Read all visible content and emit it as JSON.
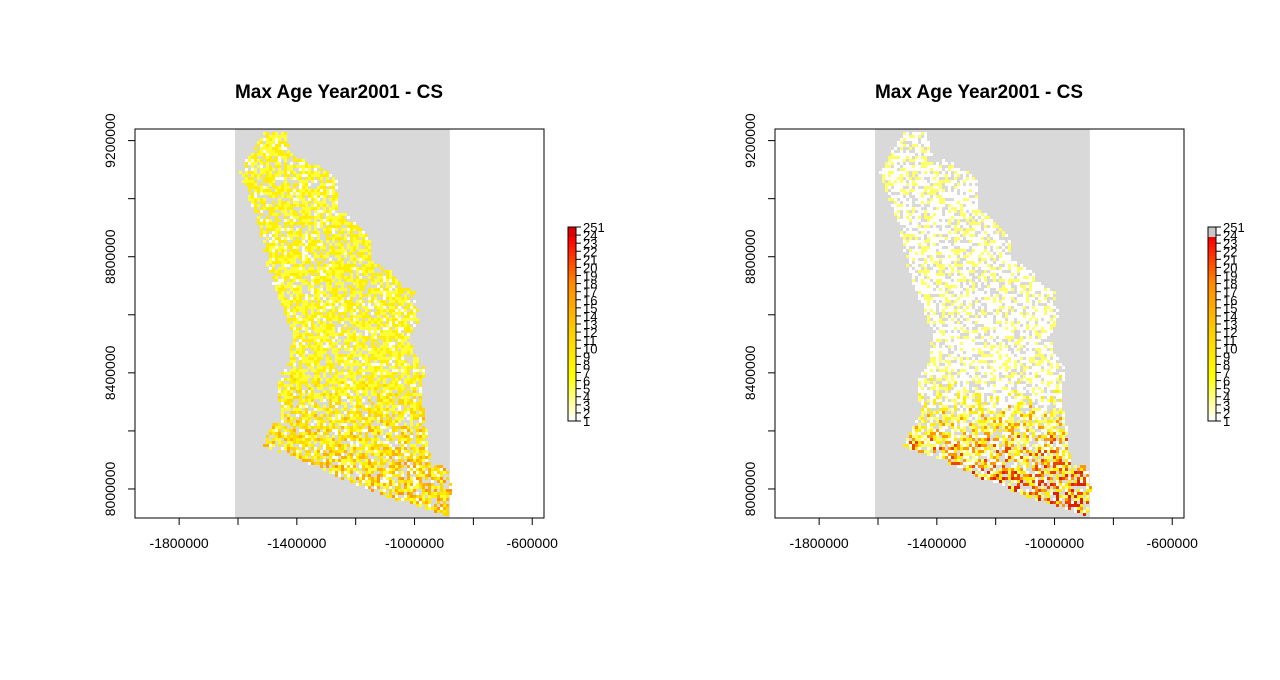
{
  "panels": [
    {
      "title": "Max Age Year2001 - CS",
      "x_ticks": [
        "-1800000",
        "-1400000",
        "-1000000",
        "-600000"
      ],
      "y_ticks": [
        "8000000",
        "8400000",
        "8800000",
        "9200000"
      ],
      "legend_labels": [
        "251",
        "24",
        "23",
        "22",
        "21",
        "20",
        "19",
        "18",
        "17",
        "16",
        "15",
        "14",
        "13",
        "12",
        "11",
        "10",
        "9",
        "8",
        "7",
        "6",
        "5",
        "4",
        "3",
        "2",
        "1"
      ]
    },
    {
      "title": "Max Age Year2001 - CS",
      "x_ticks": [
        "-1800000",
        "-1400000",
        "-1000000",
        "-600000"
      ],
      "y_ticks": [
        "8000000",
        "8400000",
        "8800000",
        "9200000"
      ],
      "legend_labels": [
        "251",
        "24",
        "23",
        "22",
        "21",
        "20",
        "19",
        "18",
        "17",
        "16",
        "15",
        "14",
        "13",
        "12",
        "11",
        "10",
        "9",
        "8",
        "7",
        "6",
        "5",
        "4",
        "3",
        "2",
        "1"
      ]
    }
  ],
  "chart_data": [
    {
      "type": "heatmap",
      "title": "Max Age Year2001 - CS",
      "xlim": [
        -1950000,
        -560000
      ],
      "ylim": [
        7900000,
        9240000
      ],
      "x_ticks": [
        -1800000,
        -1400000,
        -1000000,
        -600000
      ],
      "y_ticks": [
        8000000,
        8400000,
        8800000,
        9200000
      ],
      "raster_extent": {
        "x": [
          -1610000,
          -880000
        ],
        "y": [
          7900000,
          9240000
        ]
      },
      "background_color": "#d9d9d9",
      "legend_values": [
        251,
        24,
        23,
        22,
        21,
        20,
        19,
        18,
        17,
        16,
        15,
        14,
        13,
        12,
        11,
        10,
        9,
        8,
        7,
        6,
        5,
        4,
        3,
        2,
        1
      ],
      "color_ramp": [
        "#ffffff",
        "#ffff00",
        "#ffcc00",
        "#ff8c00",
        "#ff0000"
      ],
      "legend_top_color": "#e00000",
      "dominant_palette": [
        "#ffff33",
        "#ffee00",
        "#ffd700",
        "#ffb300",
        "#ff9a00",
        "#ffffff"
      ]
    },
    {
      "type": "heatmap",
      "title": "Max Age Year2001 - CS",
      "xlim": [
        -1950000,
        -560000
      ],
      "ylim": [
        7900000,
        9240000
      ],
      "x_ticks": [
        -1800000,
        -1400000,
        -1000000,
        -600000
      ],
      "y_ticks": [
        8000000,
        8400000,
        8800000,
        9200000
      ],
      "raster_extent": {
        "x": [
          -1610000,
          -880000
        ],
        "y": [
          7900000,
          9240000
        ]
      },
      "background_color": "#d9d9d9",
      "legend_values": [
        251,
        24,
        23,
        22,
        21,
        20,
        19,
        18,
        17,
        16,
        15,
        14,
        13,
        12,
        11,
        10,
        9,
        8,
        7,
        6,
        5,
        4,
        3,
        2,
        1
      ],
      "color_ramp": [
        "#ffffff",
        "#ffff00",
        "#ffcc00",
        "#ff8c00",
        "#ff0000"
      ],
      "legend_top_color": "#c8c8c8",
      "dominant_palette": [
        "#ffffff",
        "#ffff66",
        "#ffee00",
        "#ff9900",
        "#ee4400",
        "#dd2200"
      ]
    }
  ]
}
